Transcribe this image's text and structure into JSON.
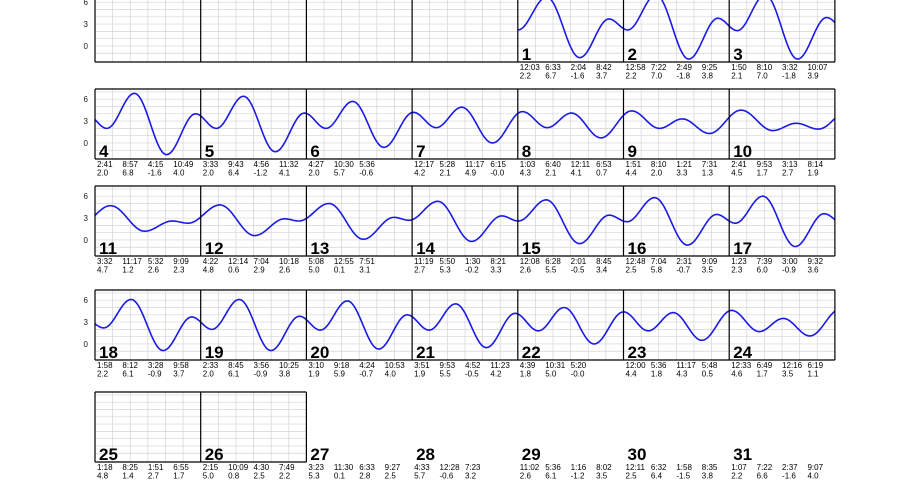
{
  "chart_data": {
    "type": "line",
    "title": "",
    "y_ticks": [
      "0",
      "3",
      "6"
    ],
    "ylim": [
      -2.2,
      7.4
    ],
    "days_per_row": 7,
    "first_day_offset": 4,
    "curve_color": "#1a1ae6",
    "days": [
      {
        "day": "1",
        "events": [
          {
            "t": "12:03",
            "h": "2.2"
          },
          {
            "t": "6:33",
            "h": "6.7"
          },
          {
            "t": "2:04",
            "h": "-1.6"
          },
          {
            "t": "8:42",
            "h": "3.7"
          }
        ]
      },
      {
        "day": "2",
        "events": [
          {
            "t": "12:58",
            "h": "2.2"
          },
          {
            "t": "7:22",
            "h": "7.0"
          },
          {
            "t": "2:49",
            "h": "-1.8"
          },
          {
            "t": "9:25",
            "h": "3.8"
          }
        ]
      },
      {
        "day": "3",
        "events": [
          {
            "t": "1:50",
            "h": "2.1"
          },
          {
            "t": "8:10",
            "h": "7.0"
          },
          {
            "t": "3:32",
            "h": "-1.8"
          },
          {
            "t": "10:07",
            "h": "3.9"
          }
        ]
      },
      {
        "day": "4",
        "events": [
          {
            "t": "2:41",
            "h": "2.0"
          },
          {
            "t": "8:57",
            "h": "6.8"
          },
          {
            "t": "4:15",
            "h": "-1.6"
          },
          {
            "t": "10:49",
            "h": "4.0"
          }
        ]
      },
      {
        "day": "5",
        "events": [
          {
            "t": "3:33",
            "h": "2.0"
          },
          {
            "t": "9:43",
            "h": "6.4"
          },
          {
            "t": "4:56",
            "h": "-1.2"
          },
          {
            "t": "11:32",
            "h": "4.1"
          }
        ]
      },
      {
        "day": "6",
        "events": [
          {
            "t": "4:27",
            "h": "2.0"
          },
          {
            "t": "10:30",
            "h": "5.7"
          },
          {
            "t": "5:36",
            "h": "-0.6"
          }
        ]
      },
      {
        "day": "7",
        "events": [
          {
            "t": "12:17",
            "h": "4.2"
          },
          {
            "t": "5:28",
            "h": "2.1"
          },
          {
            "t": "11:17",
            "h": "4.9"
          },
          {
            "t": "6:15",
            "h": "-0.0"
          }
        ]
      },
      {
        "day": "8",
        "events": [
          {
            "t": "1:03",
            "h": "4.3"
          },
          {
            "t": "6:40",
            "h": "2.1"
          },
          {
            "t": "12:11",
            "h": "4.1"
          },
          {
            "t": "6:53",
            "h": "0.7"
          }
        ]
      },
      {
        "day": "9",
        "events": [
          {
            "t": "1:51",
            "h": "4.4"
          },
          {
            "t": "8:10",
            "h": "2.0"
          },
          {
            "t": "1:21",
            "h": "3.3"
          },
          {
            "t": "7:31",
            "h": "1.3"
          }
        ]
      },
      {
        "day": "10",
        "events": [
          {
            "t": "2:41",
            "h": "4.5"
          },
          {
            "t": "9:53",
            "h": "1.7"
          },
          {
            "t": "3:13",
            "h": "2.7"
          },
          {
            "t": "8:14",
            "h": "1.9"
          }
        ]
      },
      {
        "day": "11",
        "events": [
          {
            "t": "3:32",
            "h": "4.7"
          },
          {
            "t": "11:17",
            "h": "1.2"
          },
          {
            "t": "5:32",
            "h": "2.6"
          },
          {
            "t": "9:09",
            "h": "2.3"
          }
        ]
      },
      {
        "day": "12",
        "events": [
          {
            "t": "4:22",
            "h": "4.8"
          },
          {
            "t": "12:14",
            "h": "0.6"
          },
          {
            "t": "7:04",
            "h": "2.9"
          },
          {
            "t": "10:18",
            "h": "2.6"
          }
        ]
      },
      {
        "day": "13",
        "events": [
          {
            "t": "5:08",
            "h": "5.0"
          },
          {
            "t": "12:55",
            "h": "0.1"
          },
          {
            "t": "7:51",
            "h": "3.1"
          }
        ]
      },
      {
        "day": "14",
        "events": [
          {
            "t": "11:19",
            "h": "2.7"
          },
          {
            "t": "5:50",
            "h": "5.3"
          },
          {
            "t": "1:30",
            "h": "-0.2"
          },
          {
            "t": "8:21",
            "h": "3.3"
          }
        ]
      },
      {
        "day": "15",
        "events": [
          {
            "t": "12:08",
            "h": "2.6"
          },
          {
            "t": "6:28",
            "h": "5.5"
          },
          {
            "t": "2:01",
            "h": "-0.5"
          },
          {
            "t": "8:45",
            "h": "3.4"
          }
        ]
      },
      {
        "day": "16",
        "events": [
          {
            "t": "12:48",
            "h": "2.5"
          },
          {
            "t": "7:04",
            "h": "5.8"
          },
          {
            "t": "2:31",
            "h": "-0.7"
          },
          {
            "t": "9:09",
            "h": "3.5"
          }
        ]
      },
      {
        "day": "17",
        "events": [
          {
            "t": "1:23",
            "h": "2.3"
          },
          {
            "t": "7:39",
            "h": "6.0"
          },
          {
            "t": "3:00",
            "h": "-0.9"
          },
          {
            "t": "9:32",
            "h": "3.6"
          }
        ]
      },
      {
        "day": "18",
        "events": [
          {
            "t": "1:58",
            "h": "2.2"
          },
          {
            "t": "8:12",
            "h": "6.1"
          },
          {
            "t": "3:28",
            "h": "-0.9"
          },
          {
            "t": "9:58",
            "h": "3.7"
          }
        ]
      },
      {
        "day": "19",
        "events": [
          {
            "t": "2:33",
            "h": "2.0"
          },
          {
            "t": "8:45",
            "h": "6.1"
          },
          {
            "t": "3:56",
            "h": "-0.9"
          },
          {
            "t": "10:25",
            "h": "3.8"
          }
        ]
      },
      {
        "day": "20",
        "events": [
          {
            "t": "3:10",
            "h": "1.9"
          },
          {
            "t": "9:18",
            "h": "5.9"
          },
          {
            "t": "4:24",
            "h": "-0.7"
          },
          {
            "t": "10:53",
            "h": "4.0"
          }
        ]
      },
      {
        "day": "21",
        "events": [
          {
            "t": "3:51",
            "h": "1.9"
          },
          {
            "t": "9:53",
            "h": "5.5"
          },
          {
            "t": "4:52",
            "h": "-0.5"
          },
          {
            "t": "11:23",
            "h": "4.2"
          }
        ]
      },
      {
        "day": "22",
        "events": [
          {
            "t": "4:39",
            "h": "1.8"
          },
          {
            "t": "10:31",
            "h": "5.0"
          },
          {
            "t": "5:20",
            "h": "-0.0"
          }
        ]
      },
      {
        "day": "23",
        "events": [
          {
            "t": "12:00",
            "h": "4.4"
          },
          {
            "t": "5:36",
            "h": "1.8"
          },
          {
            "t": "11:17",
            "h": "4.3"
          },
          {
            "t": "5:48",
            "h": "0.5"
          }
        ]
      },
      {
        "day": "24",
        "events": [
          {
            "t": "12:33",
            "h": "4.6"
          },
          {
            "t": "6:49",
            "h": "1.7"
          },
          {
            "t": "12:16",
            "h": "3.5"
          },
          {
            "t": "6:19",
            "h": "1.1"
          }
        ]
      },
      {
        "day": "25",
        "events": [
          {
            "t": "1:18",
            "h": "4.8"
          },
          {
            "t": "8:25",
            "h": "1.4"
          },
          {
            "t": "1:51",
            "h": "2.7"
          },
          {
            "t": "6:55",
            "h": "1.7"
          }
        ]
      },
      {
        "day": "26",
        "events": [
          {
            "t": "2:15",
            "h": "5.0"
          },
          {
            "t": "10:09",
            "h": "0.8"
          },
          {
            "t": "4:30",
            "h": "2.5"
          },
          {
            "t": "7:49",
            "h": "2.2"
          }
        ]
      },
      {
        "day": "27",
        "events": [
          {
            "t": "3:23",
            "h": "5.3"
          },
          {
            "t": "11:30",
            "h": "0.1"
          },
          {
            "t": "6:33",
            "h": "2.8"
          },
          {
            "t": "9:27",
            "h": "2.5"
          }
        ]
      },
      {
        "day": "28",
        "events": [
          {
            "t": "4:33",
            "h": "5.7"
          },
          {
            "t": "12:28",
            "h": "-0.6"
          },
          {
            "t": "7:23",
            "h": "3.2"
          }
        ]
      },
      {
        "day": "29",
        "events": [
          {
            "t": "11:02",
            "h": "2.6"
          },
          {
            "t": "5:36",
            "h": "6.1"
          },
          {
            "t": "1:16",
            "h": "-1.2"
          },
          {
            "t": "8:02",
            "h": "3.5"
          }
        ]
      },
      {
        "day": "30",
        "events": [
          {
            "t": "12:11",
            "h": "2.5"
          },
          {
            "t": "6:32",
            "h": "6.4"
          },
          {
            "t": "1:58",
            "h": "-1.5"
          },
          {
            "t": "8:35",
            "h": "3.8"
          }
        ]
      },
      {
        "day": "31",
        "events": [
          {
            "t": "1:07",
            "h": "2.2"
          },
          {
            "t": "7:22",
            "h": "6.6"
          },
          {
            "t": "2:37",
            "h": "-1.6"
          },
          {
            "t": "9:07",
            "h": "4.0"
          }
        ]
      }
    ]
  }
}
